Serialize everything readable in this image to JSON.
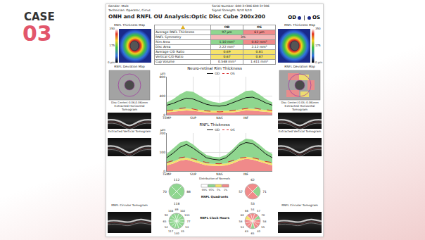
{
  "slide": {
    "label": "CASE",
    "number": "03"
  },
  "report": {
    "header": [
      {
        "label": "Gender:",
        "values": [
          "Male"
        ]
      },
      {
        "label": "Technician:",
        "values": [
          "Operator, Cirrus"
        ]
      },
      {
        "label": "Serial Number:",
        "values": [
          "600-37306",
          "600-37306"
        ]
      },
      {
        "label": "Signal Strength:",
        "values": [
          "9/10",
          "9/10"
        ]
      }
    ],
    "title": "ONH and RNFL OU Analysis:Optic Disc Cube 200x200",
    "eyes": [
      "OD",
      "OS"
    ],
    "thickness_map": {
      "label": "RNFL Thickness Map",
      "scale_ticks": [
        350,
        175,
        0
      ],
      "unit": "µm"
    },
    "table": {
      "columns": [
        "OD",
        "OS"
      ],
      "rows": [
        {
          "label": "Average RNFL Thickness",
          "values": [
            "97 µm",
            "61 µm"
          ],
          "colors": [
            "#8fd68f",
            "#f08a8a"
          ]
        },
        {
          "label": "RNFL Symmetry",
          "values": [
            "3%"
          ],
          "colors": [
            "#f5b8b8"
          ]
        },
        {
          "label": "Rim Area",
          "values": [
            "1.10 mm²",
            "0.42 mm²"
          ],
          "colors": [
            "#8fd68f",
            "#f08a8a"
          ]
        },
        {
          "label": "Disc Area",
          "values": [
            "2.22 mm²",
            "2.12 mm²"
          ],
          "colors": [
            "#ffffff",
            "#ffffff"
          ]
        },
        {
          "label": "Average C/D Ratio",
          "values": [
            "0.69",
            "0.81"
          ],
          "colors": [
            "#f5e26b",
            "#f5e26b"
          ]
        },
        {
          "label": "Vertical C/D Ratio",
          "values": [
            "0.67",
            "0.87"
          ],
          "colors": [
            "#f5e26b",
            "#f5e26b"
          ]
        },
        {
          "label": "Cup Volume",
          "values": [
            "0.548 mm³",
            "1.411 mm³"
          ],
          "colors": [
            "#ffffff",
            "#ffffff"
          ]
        }
      ]
    },
    "deviation_map": {
      "label": "RNFL Deviation Map",
      "disc_centers": [
        "Disc Center(-0.06,0.06)mm",
        "Disc Center(-0.03,-0.06)mm"
      ]
    },
    "tomograms": [
      "Extracted Horizontal Tomogram",
      "Extracted Vertical Tomogram",
      "RNFL Circular Tomogram"
    ],
    "distribution_of_normals": {
      "title": "Distribution of Normals",
      "items": [
        {
          "label": "99%",
          "color": "#ffffff"
        },
        {
          "label": "95%",
          "color": "#8fd68f"
        },
        {
          "label": "5%",
          "color": "#f5e26b"
        },
        {
          "label": "1%",
          "color": "#f08a8a"
        }
      ]
    },
    "quadrants": {
      "title": "RNFL Quadrants",
      "OD": {
        "values": [
          112,
          88,
          118,
          70
        ],
        "colors": [
          "#8fd68f",
          "#8fd68f",
          "#8fd68f",
          "#8fd68f"
        ]
      },
      "OS": {
        "values": [
          62,
          71,
          53,
          57
        ],
        "colors": [
          "#f08a8a",
          "#8fd68f",
          "#f08a8a",
          "#f08a8a"
        ]
      }
    },
    "clock_hours": {
      "title": "RNFL Clock Hours",
      "OD": {
        "values": [
          89,
          102,
          133,
          77,
          54,
          35,
          140,
          117,
          52,
          65,
          90,
          148
        ],
        "colors": [
          "#8fd68f",
          "#8fd68f",
          "#8fd68f",
          "#8fd68f",
          "#8fd68f",
          "#8fd68f",
          "#8fd68f",
          "#8fd68f",
          "#8fd68f",
          "#8fd68f",
          "#8fd68f",
          "#8fd68f"
        ]
      },
      "OS": {
        "values": [
          54,
          57,
          70,
          58,
          55,
          40,
          65,
          63,
          54,
          58,
          60,
          66
        ],
        "colors": [
          "#f08a8a",
          "#f08a8a",
          "#8fd68f",
          "#f08a8a",
          "#f08a8a",
          "#f08a8a",
          "#8fd68f",
          "#f08a8a",
          "#f08a8a",
          "#f08a8a",
          "#f5e26b",
          "#f08a8a"
        ]
      }
    }
  },
  "chart_data": [
    {
      "type": "line",
      "title": "Neuro-retinal Rim Thickness",
      "y_unit": "µm",
      "x": [
        0,
        1,
        2,
        3,
        4,
        5,
        6,
        7,
        8,
        9,
        10,
        11,
        12,
        13,
        14,
        15,
        16
      ],
      "xlim": [
        0,
        16
      ],
      "xticks": [
        {
          "value": 0,
          "label": "TEMP"
        },
        {
          "value": 4,
          "label": "SUP"
        },
        {
          "value": 8,
          "label": "NAS"
        },
        {
          "value": 12,
          "label": "INF"
        },
        {
          "value": 16,
          "label": "TEMP"
        }
      ],
      "ylim": [
        0,
        800
      ],
      "yticks": [
        0,
        400,
        800
      ],
      "grid": true,
      "legend": "top",
      "normal_distribution": {
        "p1": [
          50,
          60,
          80,
          90,
          80,
          60,
          50,
          45,
          40,
          45,
          50,
          70,
          90,
          85,
          70,
          55,
          50
        ],
        "p5": [
          90,
          100,
          120,
          130,
          120,
          100,
          90,
          85,
          80,
          85,
          90,
          110,
          130,
          125,
          110,
          95,
          90
        ],
        "p95": [
          260,
          330,
          430,
          500,
          480,
          400,
          320,
          270,
          250,
          280,
          340,
          420,
          500,
          510,
          430,
          330,
          260
        ]
      },
      "series": [
        {
          "name": "OD",
          "color": "#111111",
          "line_style": "solid",
          "values": [
            200,
            240,
            300,
            350,
            330,
            280,
            220,
            190,
            180,
            200,
            250,
            310,
            360,
            370,
            320,
            250,
            200
          ]
        },
        {
          "name": "OS",
          "color": "#d62728",
          "line_style": "dash",
          "values": [
            90,
            100,
            130,
            150,
            120,
            90,
            80,
            70,
            60,
            70,
            90,
            110,
            140,
            150,
            120,
            100,
            90
          ]
        }
      ]
    },
    {
      "type": "line",
      "title": "RNFL Thickness",
      "y_unit": "µm",
      "x": [
        0,
        1,
        2,
        3,
        4,
        5,
        6,
        7,
        8,
        9,
        10,
        11,
        12,
        13,
        14,
        15,
        16
      ],
      "xlim": [
        0,
        16
      ],
      "xticks": [
        {
          "value": 0,
          "label": "TEMP"
        },
        {
          "value": 4,
          "label": "SUP"
        },
        {
          "value": 8,
          "label": "NAS"
        },
        {
          "value": 12,
          "label": "INF"
        },
        {
          "value": 16,
          "label": "TEMP"
        }
      ],
      "ylim": [
        0,
        200
      ],
      "yticks": [
        0,
        100,
        200
      ],
      "grid": true,
      "legend": "top",
      "normal_distribution": {
        "p1": [
          30,
          40,
          55,
          60,
          50,
          40,
          30,
          28,
          27,
          30,
          40,
          55,
          65,
          60,
          50,
          38,
          30
        ],
        "p5": [
          40,
          50,
          65,
          70,
          60,
          50,
          40,
          38,
          37,
          40,
          50,
          65,
          75,
          70,
          60,
          48,
          40
        ],
        "p95": [
          90,
          120,
          150,
          160,
          140,
          110,
          85,
          75,
          72,
          85,
          115,
          150,
          170,
          165,
          140,
          110,
          90
        ]
      },
      "series": [
        {
          "name": "OD",
          "color": "#111111",
          "line_style": "solid",
          "values": [
            70,
            95,
            125,
            140,
            120,
            95,
            70,
            62,
            58,
            70,
            100,
            135,
            150,
            145,
            120,
            90,
            70
          ]
        },
        {
          "name": "OS",
          "color": "#d62728",
          "line_style": "dash",
          "values": [
            45,
            55,
            70,
            75,
            65,
            55,
            45,
            40,
            38,
            45,
            55,
            68,
            72,
            70,
            62,
            50,
            45
          ]
        }
      ]
    }
  ]
}
